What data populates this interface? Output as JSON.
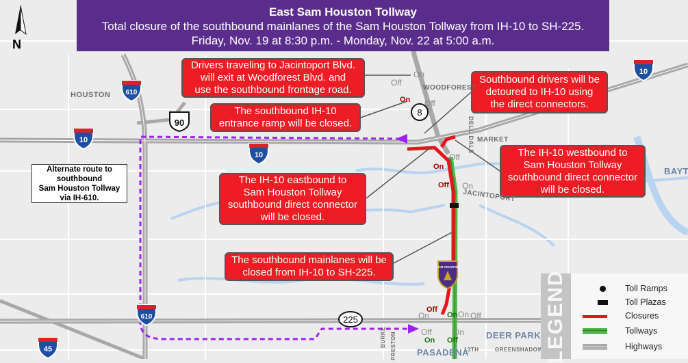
{
  "header": {
    "title": "East Sam Houston Tollway",
    "line1": "Total closure of the southbound mainlanes of the Sam Houston Tollway from IH-10 to SH-225.",
    "line2": "Friday, Nov. 19 at 8:30 p.m. - Monday, Nov. 22 at 5:00 a.m."
  },
  "north_label": "N",
  "callouts": [
    {
      "lines": [
        "Drivers traveling to Jacintoport Blvd.",
        "will exit at Woodforest Blvd. and",
        "use the southbound frontage road."
      ]
    },
    {
      "lines": [
        "The southbound IH-10",
        "entrance ramp will be closed."
      ]
    },
    {
      "lines": [
        "Southbound drivers will be",
        "detoured to IH-10 using",
        "the direct connectors."
      ]
    },
    {
      "lines": [
        "The IH-10 westbound to",
        "Sam Houston Tollway",
        "southbound direct connector",
        "will be closed."
      ]
    },
    {
      "lines": [
        "The IH-10 eastbound to",
        "Sam Houston Tollway",
        "southbound direct connector",
        "will be closed."
      ]
    },
    {
      "lines": [
        "The southbound mainlanes will be",
        "closed from IH-10 to SH-225."
      ]
    }
  ],
  "alt_route": {
    "lines": [
      "Alternate route to",
      "southbound",
      "Sam Houston Tollway",
      "via IH-610."
    ]
  },
  "shields": {
    "i610": "610",
    "i10": "10",
    "us90": "90",
    "sh8": "8",
    "sh225": "225",
    "i45": "45",
    "tollway": "SAM HOUSTON TOLLWAY"
  },
  "places": {
    "houston": "HOUSTON",
    "woodforest": "WOODFOREST",
    "dell_dale": "DELL DALE",
    "market": "MARKET",
    "jacintoport": "JACINTOPORT",
    "deer_park": "DEER PARK",
    "pasadena": "PASADENA",
    "baytown": "BAYTO",
    "burke": "BURKE",
    "preston": "PRESTON",
    "thirteenth": "13TH",
    "greenshadow": "GREENSHADOW"
  },
  "ramps": {
    "on": "On",
    "off": "Off"
  },
  "legend": {
    "title": "LEGEND",
    "items": [
      {
        "label": "Toll Ramps",
        "icon": "dot"
      },
      {
        "label": "Toll Plazas",
        "icon": "rect"
      },
      {
        "label": "Closures",
        "color": "#e8141b"
      },
      {
        "label": "Tollways",
        "color": "#4db848"
      },
      {
        "label": "Highways",
        "color": "#a8a8a8"
      }
    ]
  },
  "colors": {
    "header": "#5a2d8c",
    "callout": "#ee1c24",
    "route": "#a020f0",
    "water": "#b8d4f0"
  }
}
